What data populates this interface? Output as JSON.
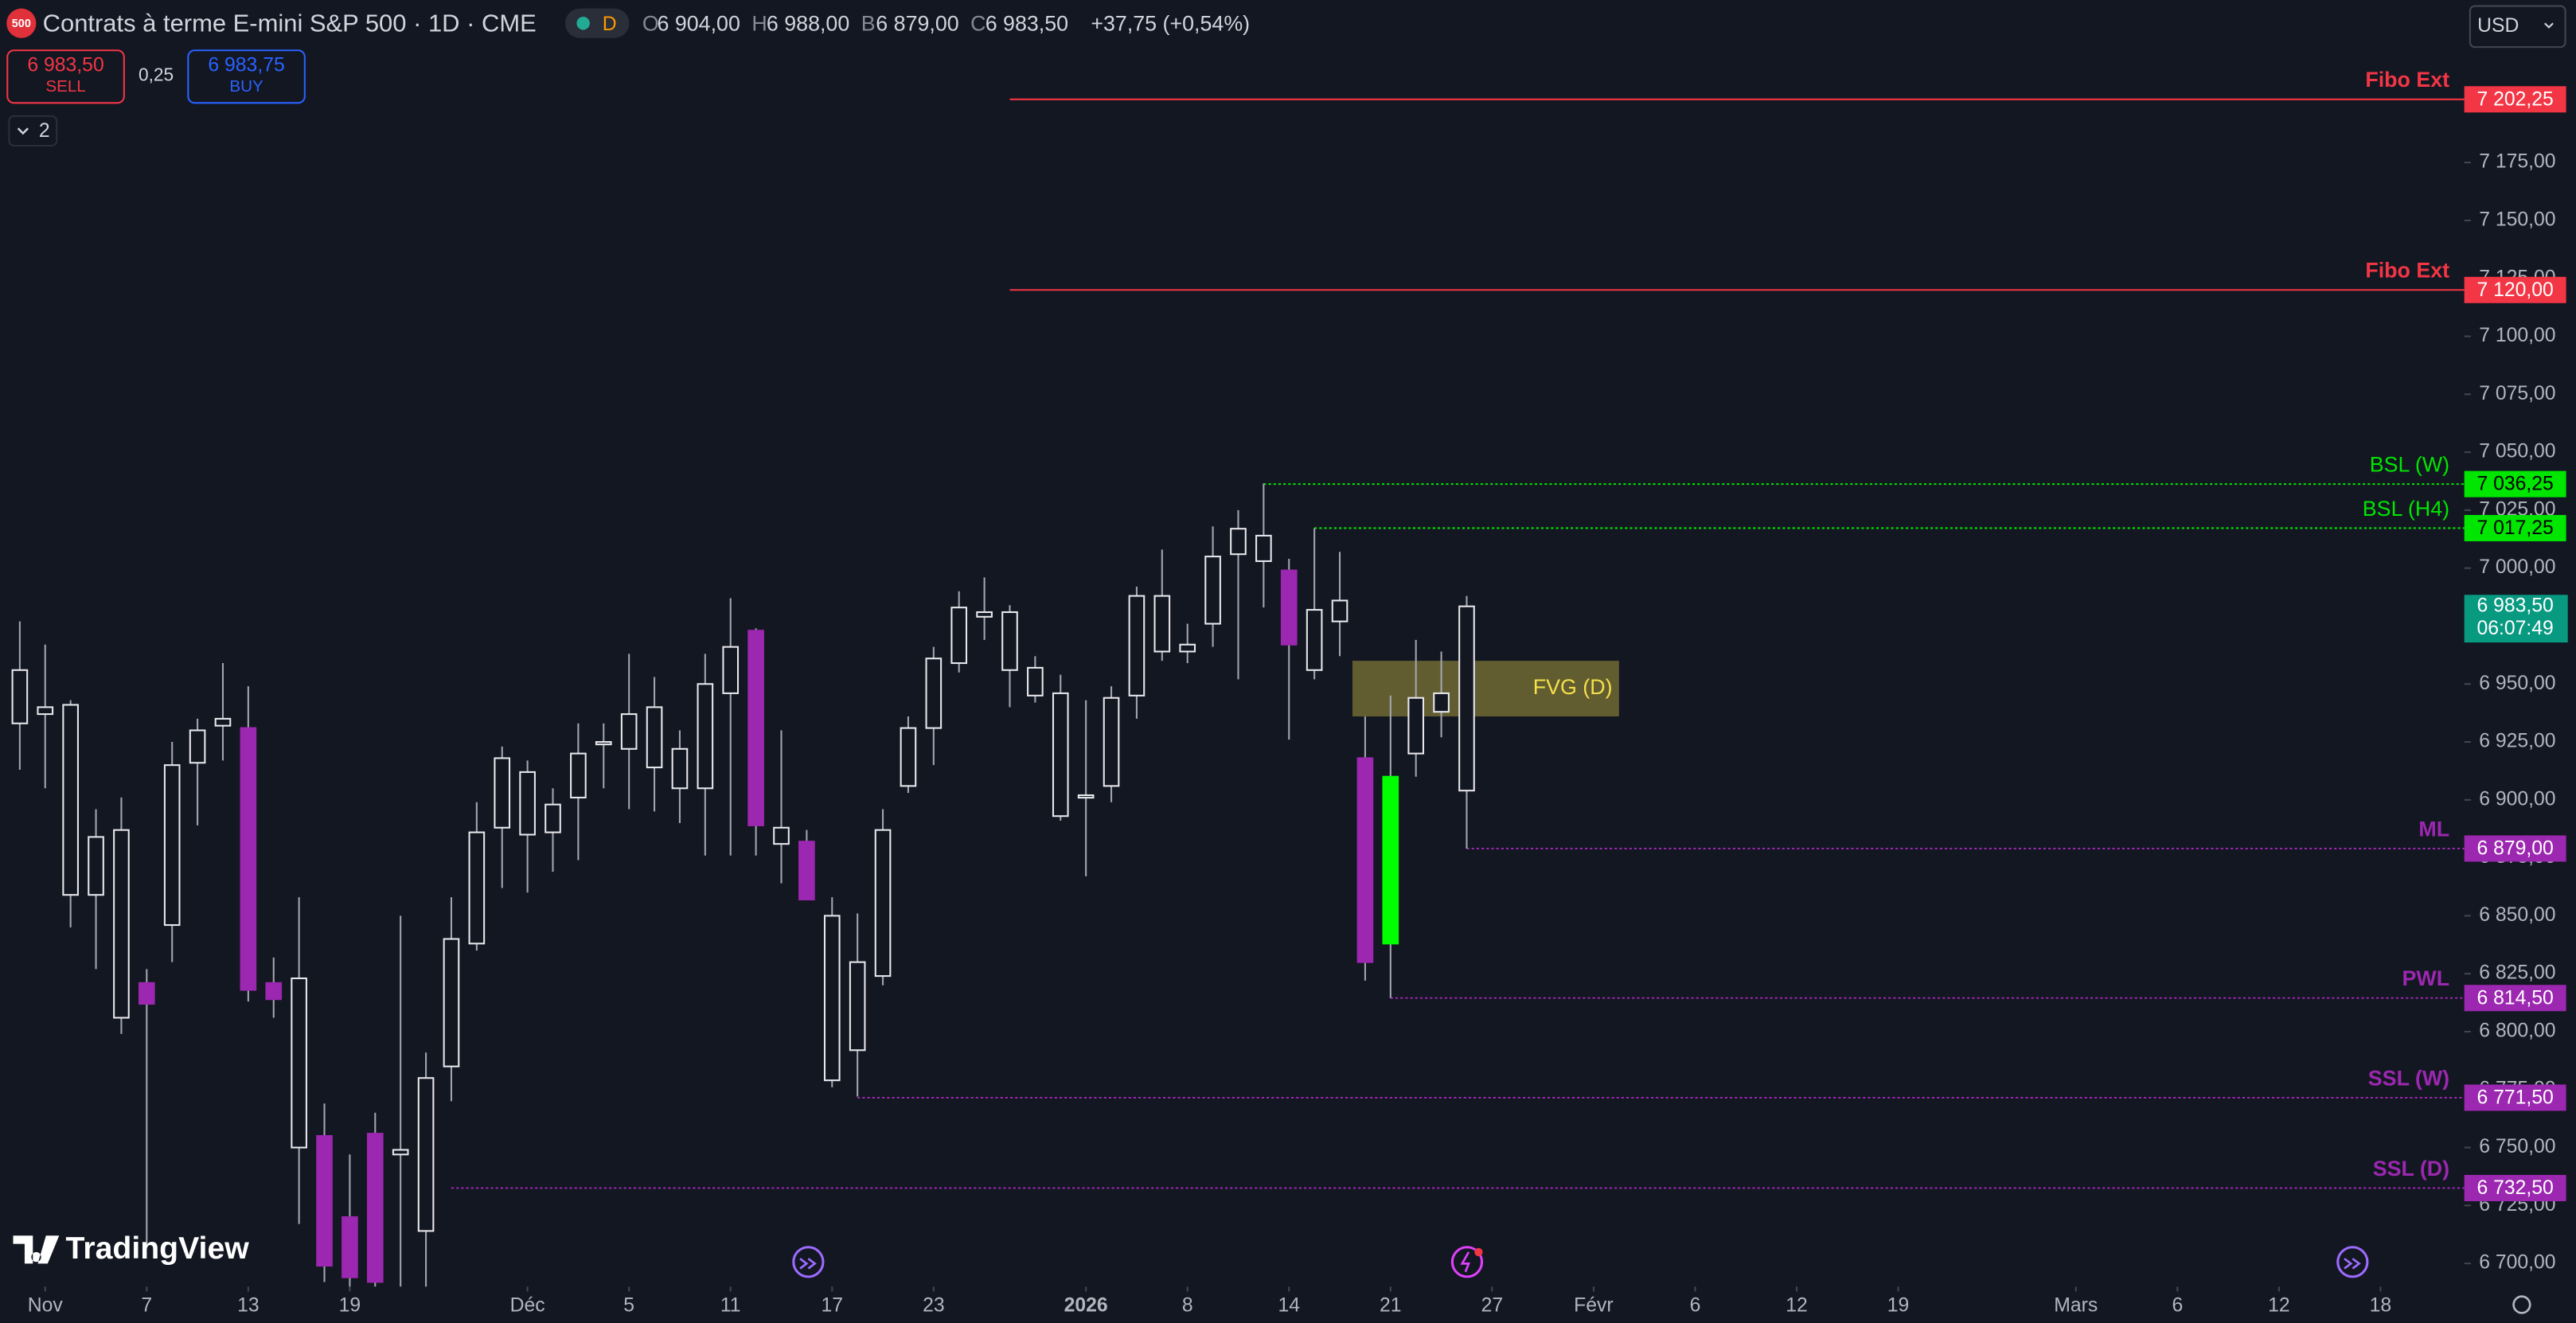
{
  "header": {
    "badge": "500",
    "title": "Contrats à terme E-mini S&P 500 · 1D · CME",
    "session": "D",
    "ohlc": [
      {
        "key": "O",
        "value": "6 904,00"
      },
      {
        "key": "H",
        "value": "6 988,00"
      },
      {
        "key": "B",
        "value": "6 879,00"
      },
      {
        "key": "C",
        "value": "6 983,50"
      }
    ],
    "change": "+37,75 (+0,54%)",
    "sell": {
      "price": "6 983,50",
      "label": "SELL"
    },
    "spread": "0,25",
    "buy": {
      "price": "6 983,75",
      "label": "BUY"
    },
    "indicators": "2",
    "currency": "USD",
    "brand": "TradingView"
  },
  "chart_data": {
    "type": "candlestick",
    "xlim": [
      -0.78,
      96.3
    ],
    "ylim": [
      6690,
      7245
    ],
    "xticks": [
      {
        "value": 1,
        "label": "Nov"
      },
      {
        "value": 5,
        "label": "7"
      },
      {
        "value": 9,
        "label": "13"
      },
      {
        "value": 13,
        "label": "19"
      },
      {
        "value": 20,
        "label": "Déc"
      },
      {
        "value": 24,
        "label": "5"
      },
      {
        "value": 28,
        "label": "11"
      },
      {
        "value": 32,
        "label": "17"
      },
      {
        "value": 36,
        "label": "23"
      },
      {
        "value": 42,
        "label": "2026"
      },
      {
        "value": 46,
        "label": "8"
      },
      {
        "value": 50,
        "label": "14"
      },
      {
        "value": 54,
        "label": "21"
      },
      {
        "value": 58,
        "label": "27"
      },
      {
        "value": 62,
        "label": "Févr"
      },
      {
        "value": 66,
        "label": "6"
      },
      {
        "value": 70,
        "label": "12"
      },
      {
        "value": 74,
        "label": "19"
      },
      {
        "value": 81,
        "label": "Mars"
      },
      {
        "value": 85,
        "label": "6"
      },
      {
        "value": 89,
        "label": "12"
      },
      {
        "value": 93,
        "label": "18"
      }
    ],
    "yticks": [
      {
        "value": 6700,
        "label": "6 700,00"
      },
      {
        "value": 6725,
        "label": "6 725,00"
      },
      {
        "value": 6750,
        "label": "6 750,00"
      },
      {
        "value": 6775,
        "label": "6 775,00"
      },
      {
        "value": 6800,
        "label": "6 800,00"
      },
      {
        "value": 6825,
        "label": "6 825,00"
      },
      {
        "value": 6850,
        "label": "6 850,00"
      },
      {
        "value": 6875,
        "label": "6 875,00"
      },
      {
        "value": 6900,
        "label": "6 900,00"
      },
      {
        "value": 6925,
        "label": "6 925,00"
      },
      {
        "value": 6950,
        "label": "6 950,00"
      },
      {
        "value": 6975,
        "label": "6 975,00"
      },
      {
        "value": 7000,
        "label": "7 000,00"
      },
      {
        "value": 7025,
        "label": "7 025,00"
      },
      {
        "value": 7050,
        "label": "7 050,00"
      },
      {
        "value": 7075,
        "label": "7 075,00"
      },
      {
        "value": 7100,
        "label": "7 100,00"
      },
      {
        "value": 7125,
        "label": "7 125,00"
      },
      {
        "value": 7150,
        "label": "7 150,00"
      },
      {
        "value": 7175,
        "label": "7 175,00"
      }
    ],
    "grid": false,
    "open": [
      6933,
      6937,
      6941,
      6859,
      6887,
      6821,
      6846,
      6916,
      6932,
      6931,
      6821,
      6823,
      6755,
      6720,
      6756,
      6747,
      6714,
      6785,
      6838,
      6888,
      6912,
      6886,
      6901,
      6924,
      6922,
      6940,
      6922,
      6905,
      6946,
      6973,
      6888,
      6882,
      6850,
      6792,
      6824,
      6906,
      6931,
      6959,
      6979,
      6981,
      6957,
      6946,
      6902,
      6906,
      6945,
      6988,
      6964,
      6976,
      7006,
      7014,
      6999,
      6956,
      6986,
      6918,
      6838,
      6920,
      6938,
      6904
    ],
    "high": [
      6977,
      6967,
      6943,
      6896,
      6901,
      6827,
      6925,
      6935,
      6959,
      6949,
      6832,
      6858,
      6769,
      6747,
      6765,
      6850,
      6791,
      6858,
      6899,
      6923,
      6917,
      6905,
      6933,
      6933,
      6963,
      6953,
      6930,
      6963,
      6987,
      6974,
      6930,
      6887,
      6858,
      6851,
      6896,
      6936,
      6966,
      6990,
      6996,
      6984,
      6962,
      6954,
      6943,
      6949,
      6992,
      7008,
      6976,
      7018,
      7025,
      7036.5,
      7004,
      7017.25,
      7007,
      6936,
      6945,
      6969,
      6964,
      6988
    ],
    "low": [
      6913,
      6905,
      6845,
      6827,
      6799,
      6707,
      6830,
      6889,
      6917,
      6813,
      6806,
      6717,
      6692,
      6690,
      6690,
      6690,
      6690,
      6770,
      6835,
      6862,
      6860,
      6869,
      6874,
      6905,
      6896,
      6895,
      6890,
      6876,
      6876,
      6876,
      6864,
      6857,
      6776,
      6772,
      6820,
      6903,
      6915,
      6955,
      6969,
      6940,
      6942,
      6891,
      6867,
      6899,
      6935,
      6960,
      6959,
      6966,
      6952,
      6983,
      6926,
      6952,
      6962,
      6822,
      6814.5,
      6910,
      6927,
      6879
    ],
    "close": [
      6956,
      6940,
      6859,
      6884,
      6806,
      6812,
      6915,
      6930,
      6935,
      6818,
      6814,
      6750,
      6699,
      6694,
      6692,
      6749,
      6780,
      6840,
      6886,
      6918,
      6885,
      6898,
      6920,
      6925,
      6937,
      6914,
      6905,
      6950,
      6966,
      6889,
      6881,
      6857,
      6779,
      6830,
      6887,
      6931,
      6961,
      6983,
      6981,
      6956,
      6945,
      6893,
      6901,
      6944,
      6988,
      6964,
      6967,
      7005,
      7017,
      7003,
      6967,
      6982,
      6977,
      6830,
      6910,
      6944,
      6946,
      6983.5
    ],
    "colors": [
      "#131722",
      "#131722",
      "#131722",
      "#131722",
      "#131722",
      "#9c27b0",
      "#131722",
      "#131722",
      "#131722",
      "#9c27b0",
      "#9c27b0",
      "#131722",
      "#9c27b0",
      "#9c27b0",
      "#9c27b0",
      "#131722",
      "#131722",
      "#131722",
      "#131722",
      "#131722",
      "#131722",
      "#131722",
      "#131722",
      "#131722",
      "#131722",
      "#131722",
      "#131722",
      "#131722",
      "#131722",
      "#9c27b0",
      "#131722",
      "#9c27b0",
      "#131722",
      "#131722",
      "#131722",
      "#131722",
      "#131722",
      "#131722",
      "#131722",
      "#131722",
      "#131722",
      "#131722",
      "#131722",
      "#131722",
      "#131722",
      "#131722",
      "#131722",
      "#131722",
      "#131722",
      "#131722",
      "#9c27b0",
      "#131722",
      "#131722",
      "#9c27b0",
      "#00ff00",
      "#131722",
      "#131722",
      "#131722"
    ],
    "levels": [
      {
        "name": "Fibo Ext",
        "value": 7202.25,
        "value_label": "7 202,25",
        "color": "#f23645",
        "style": "solid",
        "from": 39
      },
      {
        "name": "Fibo Ext",
        "value": 7120,
        "value_label": "7 120,00",
        "color": "#f23645",
        "style": "solid",
        "from": 39
      },
      {
        "name": "BSL (W)",
        "value": 7036.25,
        "value_label": "7 036,25",
        "color": "#00e600",
        "style": "dotted",
        "from": 49
      },
      {
        "name": "BSL (H4)",
        "value": 7017.25,
        "value_label": "7 017,25",
        "color": "#00e600",
        "style": "dotted",
        "from": 51
      },
      {
        "name": "ML",
        "value": 6879,
        "value_label": "6 879,00",
        "color": "#9c27b0",
        "style": "dotted",
        "from": 57
      },
      {
        "name": "PWL",
        "value": 6814.5,
        "value_label": "6 814,50",
        "color": "#9c27b0",
        "style": "dotted",
        "from": 54
      },
      {
        "name": "SSL (W)",
        "value": 6771.5,
        "value_label": "6 771,50",
        "color": "#9c27b0",
        "style": "dotted",
        "from": 33
      },
      {
        "name": "SSL (D)",
        "value": 6732.5,
        "value_label": "6 732,50",
        "color": "#9c27b0",
        "style": "dotted",
        "from": 17
      }
    ],
    "zone": {
      "label": "FVG (D)",
      "top": 6960,
      "bottom": 6936,
      "from": 52.5,
      "to": 63,
      "color": "#f5e04a"
    },
    "last_price": {
      "value": 6983.5,
      "label": "6 983,50",
      "timer": "06:07:49",
      "color": "#089981"
    }
  }
}
